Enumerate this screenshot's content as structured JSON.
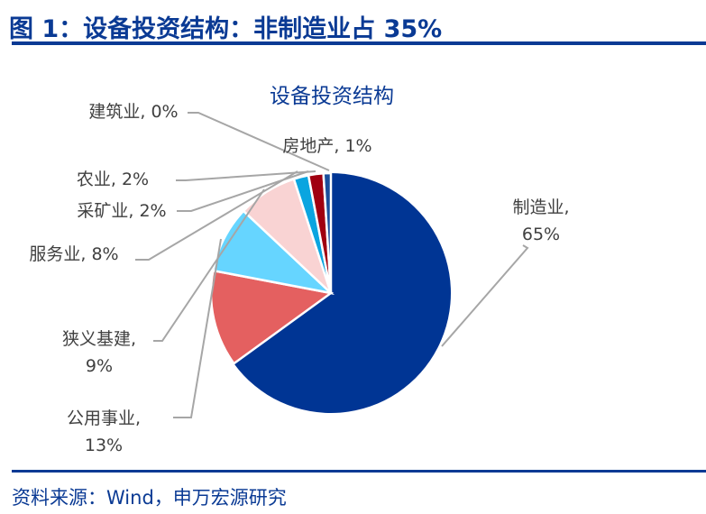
{
  "figure_title": "图 1：设备投资结构：非制造业占 35%",
  "source": "资料来源：Wind，申万宏源研究",
  "chart_data": {
    "type": "pie",
    "title": "设备投资结构",
    "unit": "%",
    "slices": [
      {
        "name": "制造业",
        "value": 65,
        "label": [
          "制造业,",
          "65%"
        ],
        "color": "#003594"
      },
      {
        "name": "公用事业",
        "value": 13,
        "label": [
          "公用事业,",
          "13%"
        ],
        "color": "#e46060"
      },
      {
        "name": "狭义基建",
        "value": 9,
        "label": [
          "狭义基建,",
          "9%"
        ],
        "color": "#66d5ff"
      },
      {
        "name": "服务业",
        "value": 8,
        "label": [
          "服务业, 8%"
        ],
        "color": "#f9d3d3"
      },
      {
        "name": "采矿业",
        "value": 2,
        "label": [
          "采矿业, 2%"
        ],
        "color": "#0aa5e0"
      },
      {
        "name": "农业",
        "value": 2,
        "label": [
          "农业, 2%"
        ],
        "color": "#a00010"
      },
      {
        "name": "房地产",
        "value": 1,
        "label": [
          "房地产, 1%"
        ],
        "color": "#1a4f9c"
      },
      {
        "name": "建筑业",
        "value": 0,
        "label": [
          "建筑业, 0%"
        ],
        "color": "#7f7f7f"
      }
    ]
  }
}
